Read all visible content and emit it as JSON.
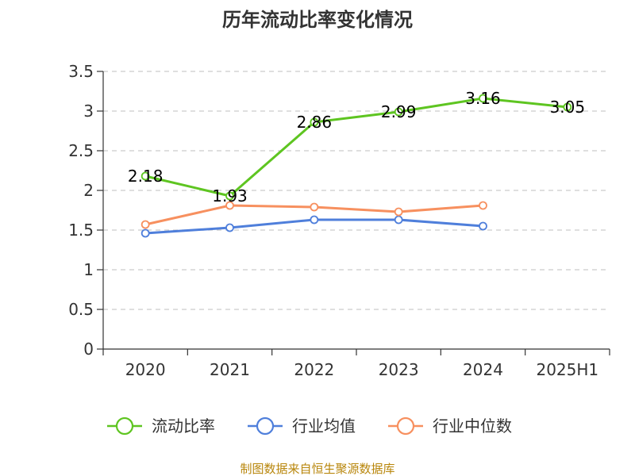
{
  "chart_data": {
    "type": "line",
    "title": "历年流动比率变化情况",
    "categories": [
      "2020",
      "2021",
      "2022",
      "2023",
      "2024",
      "2025H1"
    ],
    "ylim": [
      0,
      3.5
    ],
    "yticks": [
      "0",
      "0.5",
      "1",
      "1.5",
      "2",
      "2.5",
      "3",
      "3.5"
    ],
    "grid": true,
    "legend_position": "bottom",
    "series": [
      {
        "name": "流动比率",
        "color": "#5ec521",
        "values": [
          2.18,
          1.93,
          2.86,
          2.99,
          3.16,
          3.05
        ],
        "labels": [
          "2.18",
          "1.93",
          "2.86",
          "2.99",
          "3.16",
          "3.05"
        ]
      },
      {
        "name": "行业均值",
        "color": "#4f7fdb",
        "values": [
          1.46,
          1.53,
          1.63,
          1.63,
          1.55,
          null
        ]
      },
      {
        "name": "行业中位数",
        "color": "#f7905f",
        "values": [
          1.57,
          1.81,
          1.79,
          1.73,
          1.81,
          null
        ]
      }
    ]
  },
  "source": "制图数据来自恒生聚源数据库"
}
